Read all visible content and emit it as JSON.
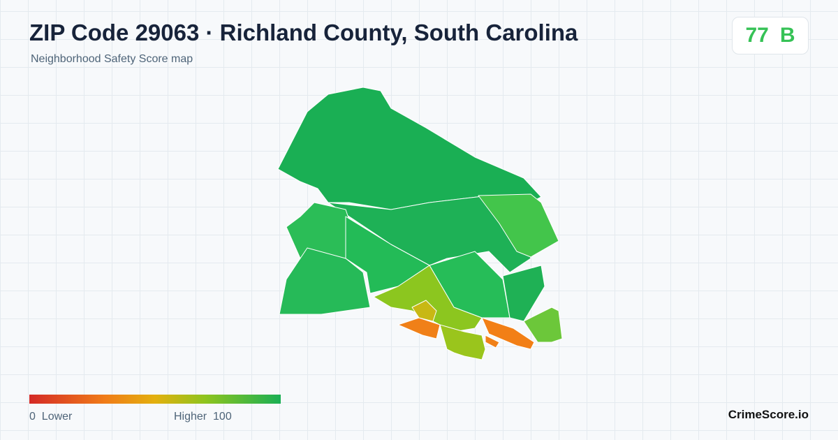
{
  "header": {
    "title": "ZIP Code 29063 · Richland County, South Carolina",
    "subtitle": "Neighborhood Safety Score map"
  },
  "score": {
    "value": "77",
    "grade": "B"
  },
  "legend": {
    "min": "0",
    "min_label": "Lower",
    "max_label": "Higher",
    "max": "100"
  },
  "brand": "CrimeScore.io"
}
